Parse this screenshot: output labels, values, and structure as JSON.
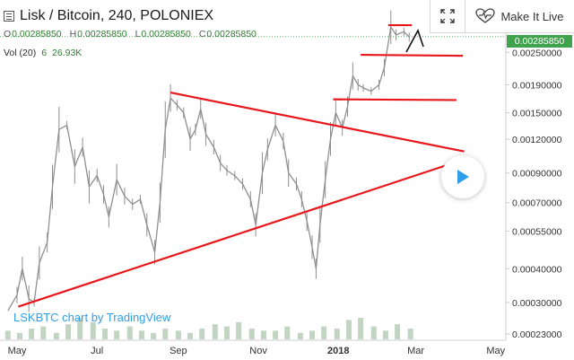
{
  "header": {
    "symbol_title": "Lisk / Bitcoin, 240, POLONIEX",
    "ohlc": [
      {
        "k": "O",
        "v": "0.00285850"
      },
      {
        "k": "H",
        "v": "0.00285850"
      },
      {
        "k": "L",
        "v": "0.00285850"
      },
      {
        "k": "C",
        "v": "0.00285850"
      }
    ],
    "volume_label": "Vol (20)",
    "volume_value1": "6",
    "volume_value2": "26.93K"
  },
  "toolbox": {
    "make_it_live_label": "Make It Live"
  },
  "watermark": "LSKBTC chart by TradingView",
  "last_price_badge": "0.00285850",
  "colors": {
    "trendline": "#e8171b",
    "candle": "#8f8f8f",
    "volume": "#8fb18f",
    "badge": "#3fa34d",
    "watermark": "#2f9ee8",
    "play_icon": "#2f9ee8"
  },
  "chart_data": {
    "type": "line",
    "scale": "log",
    "x_tick_labels": [
      "May",
      "Jul",
      "Sep",
      "Nov",
      "2018",
      "Mar",
      "May"
    ],
    "y_tick_labels": [
      "0.00285850",
      "0.00250000",
      "0.00190000",
      "0.00150000",
      "0.00120000",
      "0.00090000",
      "0.00070000",
      "0.00055000",
      "0.00040000",
      "0.00030000",
      "0.00023000"
    ],
    "ylim": [
      0.00023,
      0.0034
    ],
    "price_series": [
      [
        "2017-04-24",
        0.00028
      ],
      [
        "2017-05-01",
        0.00032
      ],
      [
        "2017-05-05",
        0.0004
      ],
      [
        "2017-05-10",
        0.00031
      ],
      [
        "2017-05-14",
        0.0003
      ],
      [
        "2017-05-18",
        0.00042
      ],
      [
        "2017-05-24",
        0.0005
      ],
      [
        "2017-05-28",
        0.0008
      ],
      [
        "2017-06-02",
        0.0013
      ],
      [
        "2017-06-08",
        0.00135
      ],
      [
        "2017-06-14",
        0.00095
      ],
      [
        "2017-06-20",
        0.00112
      ],
      [
        "2017-06-25",
        0.0008
      ],
      [
        "2017-07-01",
        0.00088
      ],
      [
        "2017-07-06",
        0.00075
      ],
      [
        "2017-07-10",
        0.00062
      ],
      [
        "2017-07-16",
        0.00085
      ],
      [
        "2017-07-22",
        0.00074
      ],
      [
        "2017-07-28",
        0.00069
      ],
      [
        "2017-08-03",
        0.00072
      ],
      [
        "2017-08-08",
        0.00058
      ],
      [
        "2017-08-14",
        0.00046
      ],
      [
        "2017-08-18",
        0.0007
      ],
      [
        "2017-08-22",
        0.0013
      ],
      [
        "2017-08-26",
        0.0017
      ],
      [
        "2017-08-31",
        0.0016
      ],
      [
        "2017-09-05",
        0.0015
      ],
      [
        "2017-09-10",
        0.0012
      ],
      [
        "2017-09-14",
        0.0013
      ],
      [
        "2017-09-18",
        0.00155
      ],
      [
        "2017-09-22",
        0.00125
      ],
      [
        "2017-09-28",
        0.00112
      ],
      [
        "2017-10-03",
        0.00098
      ],
      [
        "2017-10-08",
        0.00092
      ],
      [
        "2017-10-14",
        0.00088
      ],
      [
        "2017-10-20",
        0.00082
      ],
      [
        "2017-10-26",
        0.00072
      ],
      [
        "2017-10-30",
        0.00058
      ],
      [
        "2017-11-04",
        0.0009
      ],
      [
        "2017-11-08",
        0.0011
      ],
      [
        "2017-11-14",
        0.00135
      ],
      [
        "2017-11-20",
        0.00118
      ],
      [
        "2017-11-24",
        0.0009
      ],
      [
        "2017-11-30",
        0.00082
      ],
      [
        "2017-12-04",
        0.00072
      ],
      [
        "2017-12-08",
        0.0006
      ],
      [
        "2017-12-12",
        0.00048
      ],
      [
        "2017-12-15",
        0.0004
      ],
      [
        "2017-12-18",
        0.00058
      ],
      [
        "2017-12-22",
        0.00085
      ],
      [
        "2017-12-26",
        0.0012
      ],
      [
        "2017-12-30",
        0.0015
      ],
      [
        "2018-01-04",
        0.00132
      ],
      [
        "2018-01-08",
        0.00158
      ],
      [
        "2018-01-12",
        0.00205
      ],
      [
        "2018-01-16",
        0.0019
      ],
      [
        "2018-01-20",
        0.00185
      ],
      [
        "2018-01-26",
        0.0018
      ],
      [
        "2018-02-01",
        0.0019
      ],
      [
        "2018-02-05",
        0.0022
      ],
      [
        "2018-02-10",
        0.0031
      ],
      [
        "2018-02-14",
        0.0029
      ],
      [
        "2018-02-20",
        0.00298
      ],
      [
        "2018-02-24",
        0.00285
      ]
    ],
    "volume_series": [
      0.4,
      0.3,
      0.5,
      0.6,
      0.3,
      0.7,
      1.0,
      0.8,
      0.5,
      0.4,
      0.6,
      0.4,
      0.3,
      0.5,
      0.4,
      0.3,
      0.5,
      0.7,
      0.6,
      0.8,
      0.5,
      0.4,
      0.4,
      0.6,
      0.3,
      0.4,
      0.6,
      0.5,
      0.9,
      1.0,
      0.6,
      0.4,
      0.7,
      0.5
    ],
    "annotations": [
      {
        "name": "upper-descending-trendline",
        "from": [
          "2017-08-26",
          0.00178
        ],
        "to": [
          "2018-04-07",
          0.00108
        ]
      },
      {
        "name": "lower-ascending-trendline",
        "from": [
          "2017-05-02",
          0.00029
        ],
        "to": [
          "2018-04-07",
          0.00101
        ]
      },
      {
        "name": "resistance-top",
        "from": [
          "2018-02-08",
          0.00315
        ],
        "to": [
          "2018-02-26",
          0.00315
        ]
      },
      {
        "name": "resistance-mid",
        "from": [
          "2018-01-18",
          0.00245
        ],
        "to": [
          "2018-04-06",
          0.00243
        ]
      },
      {
        "name": "resistance-low",
        "from": [
          "2017-12-28",
          0.00168
        ],
        "to": [
          "2018-04-01",
          0.00167
        ]
      }
    ]
  }
}
